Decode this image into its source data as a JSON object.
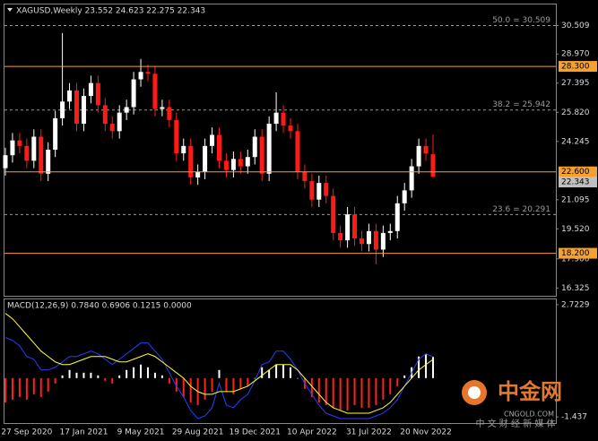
{
  "chart_data": [
    {
      "type": "candlestick",
      "title": "XAGUSD,Weekly  23.552 24.623 22.275 22.343",
      "categories": [
        null,
        null,
        null,
        "27 Sep 2020",
        null,
        null,
        null,
        null,
        null,
        null,
        null,
        "17 Jan 2021",
        null,
        null,
        null,
        null,
        null,
        null,
        null,
        "9 May 2021",
        null,
        null,
        null,
        null,
        null,
        null,
        null,
        "29 Aug 2021",
        null,
        null,
        null,
        null,
        null,
        null,
        null,
        "19 Dec 2021",
        null,
        null,
        null,
        null,
        null,
        null,
        null,
        "10 Apr 2022",
        null,
        null,
        null,
        null,
        null,
        null,
        null,
        "31 Jul 2022",
        null,
        null,
        null,
        null,
        null,
        null,
        null,
        "20 Nov 2022",
        null
      ],
      "open": [
        22.8,
        23.5,
        24.3,
        24.0,
        23.2,
        24.5,
        22.5,
        23.8,
        25.5,
        26.4,
        27.0,
        25.2,
        26.7,
        27.4,
        26.2,
        25.2,
        24.8,
        25.8,
        26.1,
        27.6,
        28.0,
        27.9,
        26.0,
        26.1,
        25.4,
        23.6,
        24.0,
        22.3,
        22.6,
        24.0,
        24.6,
        23.2,
        22.7,
        23.3,
        22.9,
        23.4,
        24.5,
        22.5,
        25.2,
        25.8,
        25.1,
        24.8,
        22.6,
        22.1,
        21.1,
        22.0,
        21.3,
        19.3,
        18.9,
        20.3,
        19.0,
        18.7,
        19.4,
        18.4,
        19.3,
        19.4,
        20.9,
        21.6,
        22.9,
        24.0,
        23.552
      ],
      "high": [
        23.9,
        24.7,
        24.7,
        24.4,
        24.9,
        24.9,
        24.2,
        25.9,
        30.1,
        27.4,
        27.4,
        27.1,
        27.8,
        27.8,
        26.6,
        25.6,
        26.2,
        26.5,
        28.0,
        28.7,
        28.4,
        28.3,
        26.5,
        26.5,
        25.8,
        24.4,
        24.4,
        23.0,
        24.4,
        25.0,
        25.0,
        23.6,
        23.7,
        23.7,
        23.8,
        24.9,
        24.9,
        25.6,
        26.9,
        26.2,
        25.5,
        25.2,
        23.0,
        22.5,
        22.4,
        22.4,
        21.7,
        19.7,
        20.7,
        20.7,
        19.4,
        19.8,
        19.8,
        19.7,
        19.8,
        21.3,
        22.0,
        23.3,
        24.4,
        24.4,
        24.623
      ],
      "low": [
        22.4,
        23.1,
        23.6,
        22.8,
        22.8,
        22.1,
        22.1,
        23.4,
        25.1,
        26.0,
        24.8,
        24.8,
        26.3,
        25.8,
        24.8,
        24.4,
        24.4,
        25.4,
        25.7,
        27.2,
        27.5,
        25.6,
        25.6,
        25.0,
        23.2,
        23.2,
        21.9,
        21.9,
        22.2,
        23.6,
        22.8,
        22.3,
        22.3,
        22.5,
        22.5,
        23.0,
        22.1,
        22.1,
        24.8,
        24.7,
        24.4,
        22.2,
        21.7,
        20.7,
        20.7,
        20.9,
        18.9,
        18.5,
        18.5,
        18.6,
        18.3,
        18.3,
        17.6,
        18.0,
        18.9,
        19.0,
        20.5,
        21.2,
        22.5,
        23.2,
        22.275
      ],
      "close": [
        23.5,
        24.3,
        24.0,
        23.2,
        24.5,
        22.5,
        23.8,
        25.5,
        26.4,
        27.0,
        25.2,
        26.7,
        27.4,
        26.2,
        25.2,
        24.8,
        25.8,
        26.1,
        27.6,
        28.0,
        27.9,
        26.0,
        26.1,
        25.4,
        23.6,
        24.0,
        22.3,
        22.6,
        24.0,
        24.6,
        23.2,
        22.7,
        23.3,
        22.9,
        23.4,
        24.5,
        22.5,
        25.2,
        25.8,
        25.1,
        24.8,
        22.6,
        22.1,
        21.1,
        22.0,
        21.3,
        19.3,
        18.9,
        20.3,
        19.0,
        18.7,
        19.4,
        18.4,
        19.3,
        19.4,
        20.9,
        21.6,
        22.9,
        24.0,
        23.6,
        22.343
      ],
      "up_color": "#ffffff",
      "down_color": "#ff1a1a",
      "ylim": [
        16.0,
        31.5
      ],
      "yticks": [
        30.509,
        {
          "value": 28.97,
          "label": "28.970"
        },
        27.395,
        {
          "value": 25.82,
          "label": "25.820"
        },
        24.245,
        21.095,
        {
          "value": 19.52,
          "label": "19.520"
        },
        {
          "value": 17.9,
          "label": "17.900"
        },
        16.325
      ],
      "levels": [
        {
          "value": 28.3,
          "label": "28.300"
        },
        {
          "value": 22.6,
          "label": "22.600"
        },
        {
          "value": 18.2,
          "label": "18.200"
        }
      ],
      "level_color": "#f5a030",
      "fibo": [
        {
          "value": 30.509,
          "label": "50.0 = 30.509"
        },
        {
          "value": 25.942,
          "label": "38.2 = 25.942"
        },
        {
          "value": 20.291,
          "label": "23.6 = 20.291"
        }
      ],
      "fibo_color": "#9a9a9a",
      "last_price": 22.343
    },
    {
      "type": "macd",
      "title": "MACD(12,26,9) 0.7840 0.6906 0.1215 0.0000",
      "histogram": [
        -0.9,
        -0.8,
        -0.7,
        -0.8,
        -0.6,
        -0.7,
        -0.5,
        -0.2,
        0.1,
        0.3,
        0.2,
        0.2,
        0.2,
        0.1,
        -0.1,
        -0.2,
        0.1,
        0.3,
        0.4,
        0.5,
        0.4,
        0.2,
        0.1,
        -0.2,
        -0.5,
        -0.7,
        -0.9,
        -1.0,
        -0.8,
        -0.5,
        0.3,
        -0.5,
        -0.6,
        -0.4,
        -0.3,
        0.0,
        0.4,
        0.3,
        0.5,
        0.5,
        0.4,
        0.0,
        -0.4,
        -0.7,
        -0.9,
        -1.0,
        -1.1,
        -1.2,
        -1.2,
        -1.0,
        -1.1,
        -1.1,
        -1.0,
        -0.8,
        -0.6,
        -0.3,
        0.1,
        0.4,
        0.8,
        0.9,
        0.784
      ],
      "macd": [
        1.5,
        1.4,
        1.2,
        0.8,
        0.7,
        0.3,
        0.3,
        0.4,
        0.6,
        0.8,
        0.8,
        0.9,
        1.0,
        0.9,
        0.7,
        0.5,
        0.7,
        0.9,
        1.1,
        1.3,
        1.3,
        1.0,
        0.7,
        0.2,
        -0.3,
        -0.7,
        -1.2,
        -1.5,
        -1.4,
        -1.1,
        -0.2,
        -1.0,
        -1.1,
        -0.8,
        -0.6,
        -0.1,
        0.5,
        0.6,
        1.0,
        1.0,
        0.7,
        0.3,
        -0.2,
        -0.6,
        -1.0,
        -1.3,
        -1.4,
        -1.5,
        -1.5,
        -1.5,
        -1.5,
        -1.5,
        -1.4,
        -1.3,
        -1.1,
        -0.8,
        -0.3,
        0.2,
        0.7,
        0.9,
        0.784
      ],
      "signal": [
        2.4,
        2.2,
        1.9,
        1.6,
        1.3,
        1.0,
        0.8,
        0.6,
        0.5,
        0.5,
        0.6,
        0.7,
        0.8,
        0.8,
        0.8,
        0.7,
        0.6,
        0.6,
        0.7,
        0.8,
        0.9,
        0.8,
        0.6,
        0.4,
        0.2,
        0.0,
        -0.3,
        -0.5,
        -0.6,
        -0.6,
        -0.5,
        -0.5,
        -0.5,
        -0.4,
        -0.3,
        -0.1,
        0.1,
        0.3,
        0.5,
        0.5,
        0.5,
        0.3,
        0.0,
        -0.3,
        -0.6,
        -0.9,
        -1.1,
        -1.2,
        -1.3,
        -1.3,
        -1.3,
        -1.3,
        -1.2,
        -1.1,
        -0.9,
        -0.6,
        -0.3,
        0.0,
        0.3,
        0.5,
        0.6906
      ],
      "hist_up_color": "#ffffff",
      "hist_down_color": "#ff2020",
      "macd_color": "#2a3cff",
      "signal_color": "#ffff33",
      "ylim": [
        -1.6,
        2.85
      ],
      "yticks": [
        2.7229,
        -1.437
      ]
    }
  ],
  "watermark": {
    "brand": "中金网",
    "site": "CNGOLD.COM",
    "slogan": "中 文 财 经 新 媒 体"
  }
}
